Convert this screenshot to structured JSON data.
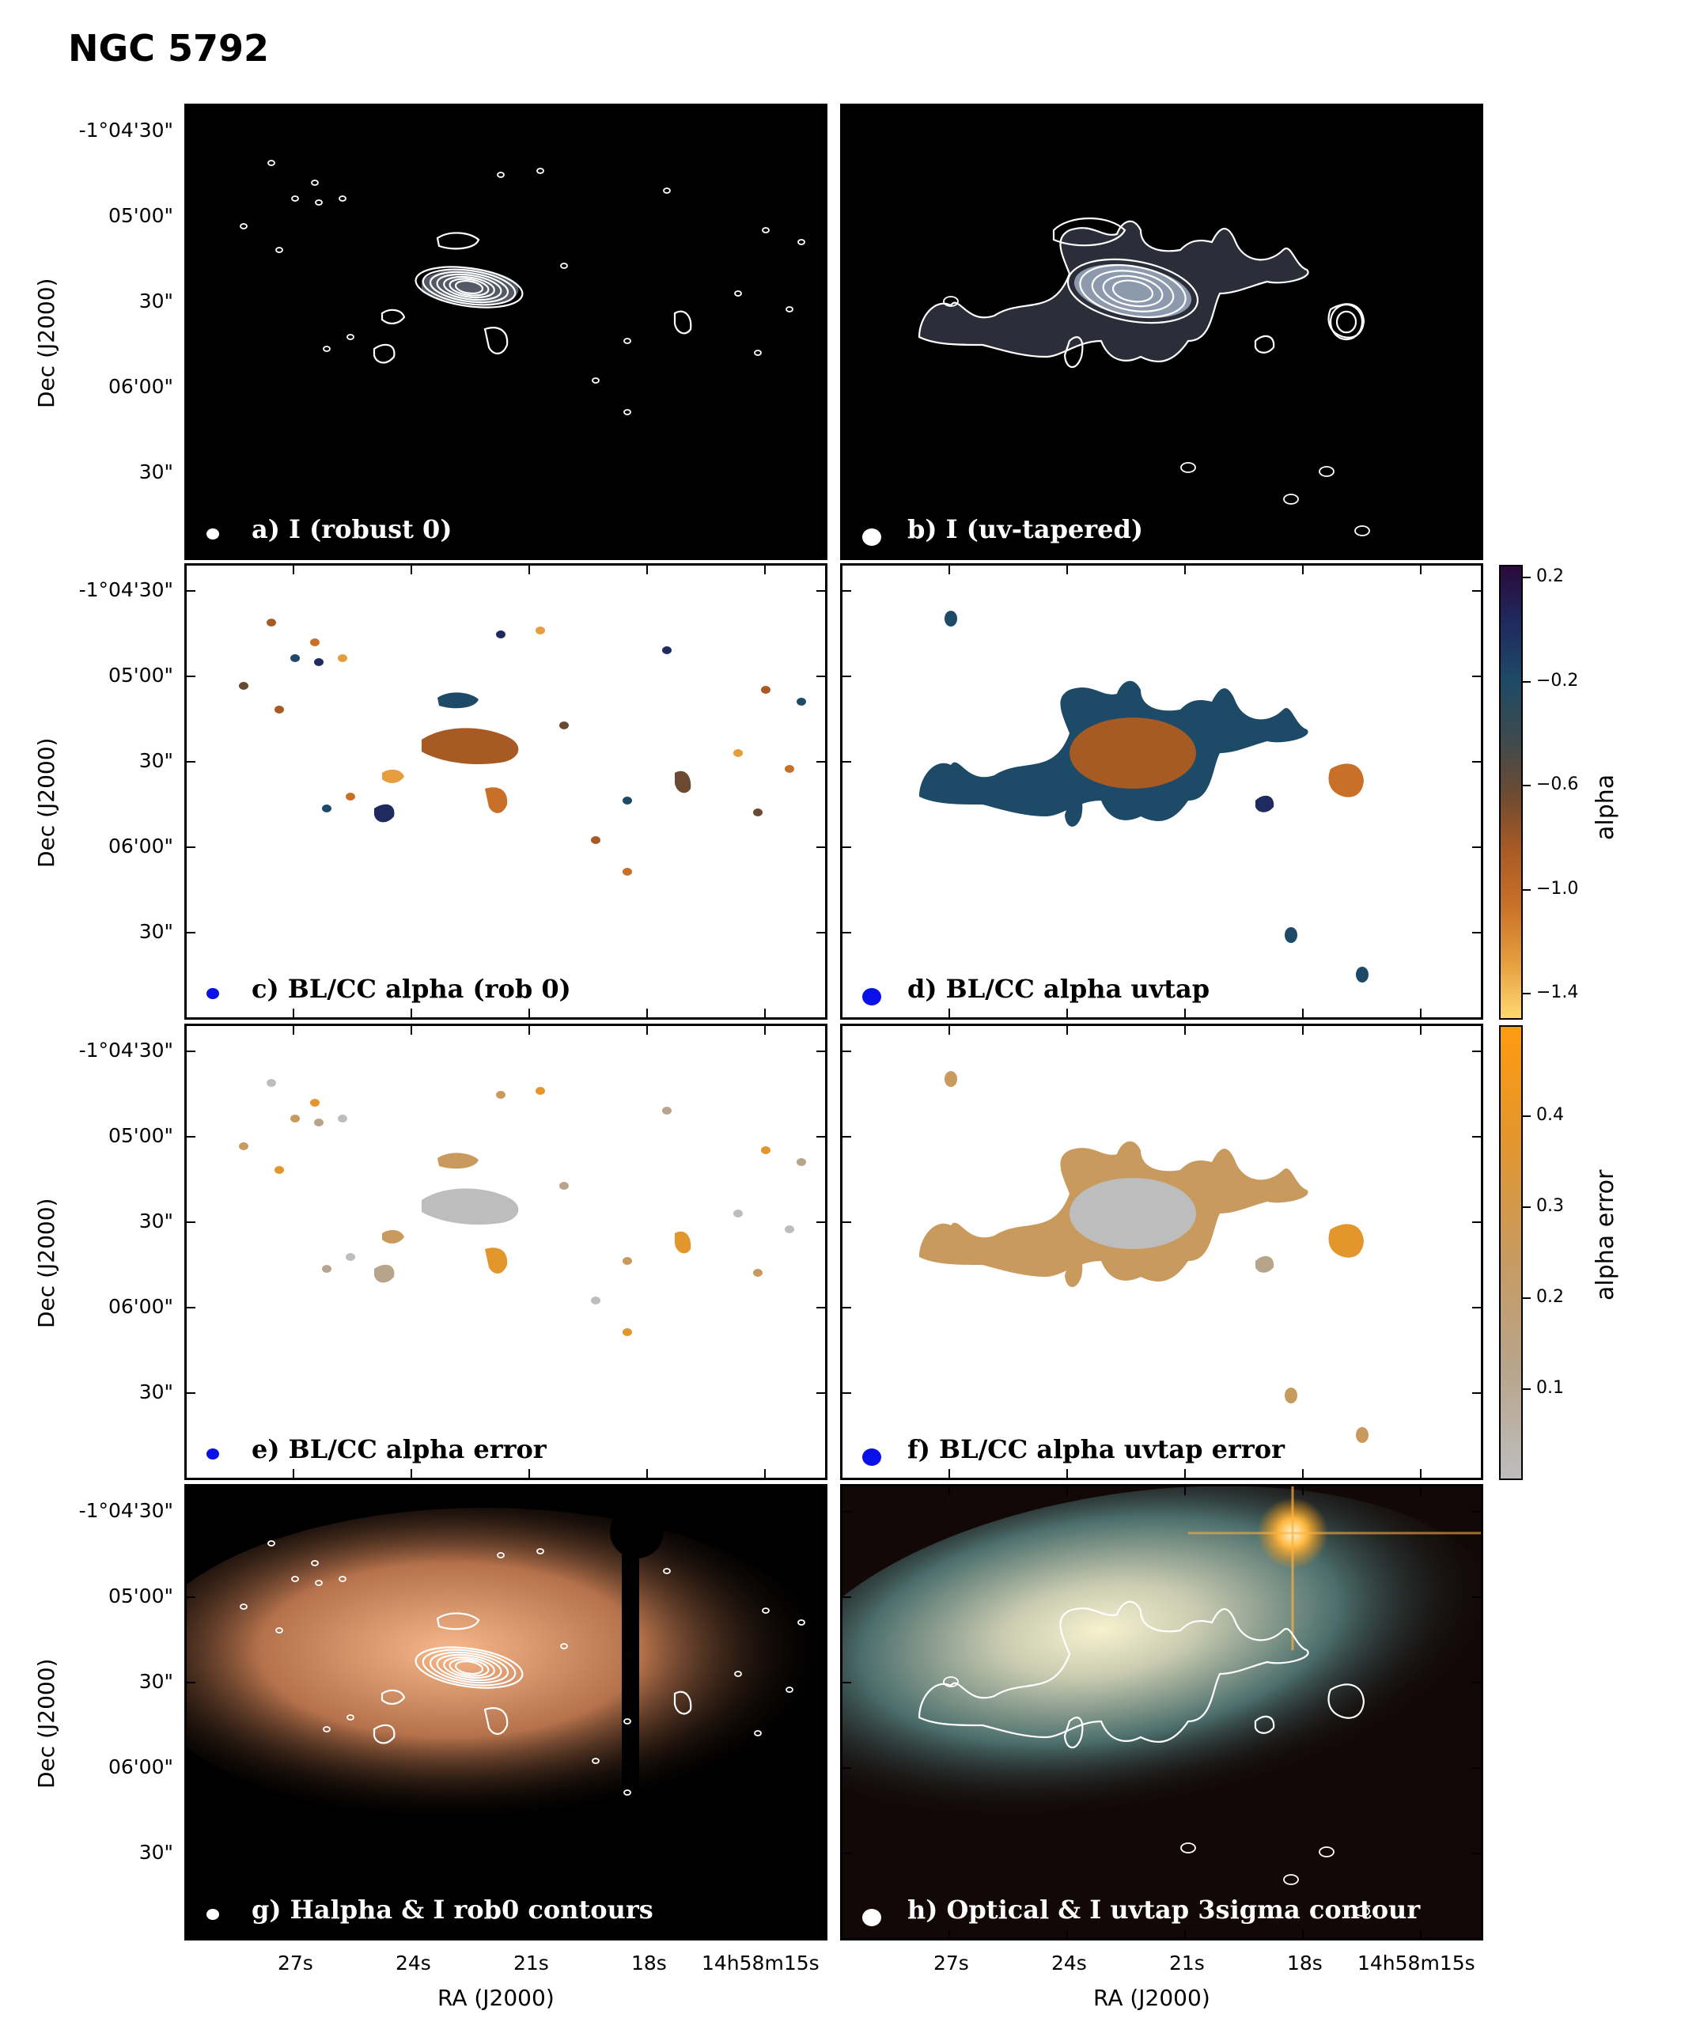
{
  "title": "NGC 5792",
  "axes": {
    "ylabel": "Dec (J2000)",
    "xlabel": "RA (J2000)",
    "yticks": [
      "-1°04'30\"",
      "05'00\"",
      "30\"",
      "06'00\"",
      "30\""
    ],
    "xticks": [
      "27s",
      "24s",
      "21s",
      "18s",
      "14h58m15s"
    ]
  },
  "panels": [
    {
      "id": "a",
      "label": "a) I (robust 0)",
      "style": "dark",
      "beam": "white"
    },
    {
      "id": "b",
      "label": "b) I (uv-tapered)",
      "style": "dark",
      "beam": "white"
    },
    {
      "id": "c",
      "label": "c) BL/CC alpha (rob 0)",
      "style": "light",
      "beam": "blue"
    },
    {
      "id": "d",
      "label": "d) BL/CC alpha uvtap",
      "style": "light",
      "beam": "blue"
    },
    {
      "id": "e",
      "label": "e)  BL/CC alpha error",
      "style": "light",
      "beam": "blue"
    },
    {
      "id": "f",
      "label": "f) BL/CC alpha uvtap error",
      "style": "light",
      "beam": "blue"
    },
    {
      "id": "g",
      "label": "g) Halpha & I rob0 contours",
      "style": "dark",
      "beam": "white"
    },
    {
      "id": "h",
      "label": "h) Optical & I uvtap 3sigma contour",
      "style": "dark",
      "beam": "white"
    }
  ],
  "colorbars": {
    "alpha": {
      "label": "alpha",
      "ticks": [
        "0.2",
        "−0.2",
        "−0.6",
        "−1.0",
        "−1.4"
      ],
      "tick_values": [
        0.2,
        -0.2,
        -0.6,
        -1.0,
        -1.4
      ],
      "range": [
        0.25,
        -1.5
      ],
      "colors": [
        "#2a0a3a",
        "#1f2a5e",
        "#1d4a66",
        "#3b4a4f",
        "#6b4a33",
        "#a85a25",
        "#c87028",
        "#e59d3e",
        "#ffd970"
      ]
    },
    "alpha_error": {
      "label": "alpha error",
      "ticks": [
        "0.4",
        "0.3",
        "0.2",
        "0.1"
      ],
      "tick_values": [
        0.4,
        0.3,
        0.2,
        0.1
      ],
      "range": [
        0.5,
        0.0
      ],
      "colors": [
        "#ff9a10",
        "#e3962c",
        "#c89a5e",
        "#b8a48a",
        "#bdbdbd"
      ]
    }
  }
}
